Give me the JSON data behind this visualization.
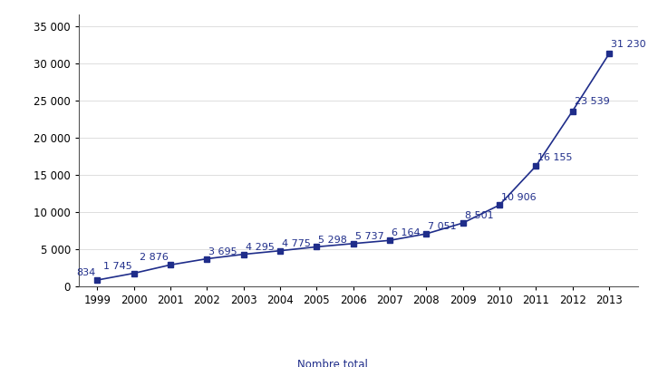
{
  "years": [
    1999,
    2000,
    2001,
    2002,
    2003,
    2004,
    2005,
    2006,
    2007,
    2008,
    2009,
    2010,
    2011,
    2012,
    2013
  ],
  "values": [
    834,
    1745,
    2876,
    3695,
    4295,
    4775,
    5298,
    5737,
    6164,
    7051,
    8501,
    10906,
    16155,
    23539,
    31230
  ],
  "labels": [
    "834",
    "1 745",
    "2 876",
    "3 695",
    "4 295",
    "4 775",
    "5 298",
    "5 737",
    "6 164",
    "7 051",
    "8 501",
    "10 906",
    "16 155",
    "23 539",
    "31 230"
  ],
  "line_color": "#1F2D8A",
  "background_color": "#ffffff",
  "yticks": [
    0,
    5000,
    10000,
    15000,
    20000,
    25000,
    30000,
    35000
  ],
  "font_size_ticks": 8.5,
  "font_size_annotations": 8.0,
  "font_size_legend": 8.5,
  "xlim_left": 1998.5,
  "xlim_right": 2013.8,
  "ylim_top": 36500
}
